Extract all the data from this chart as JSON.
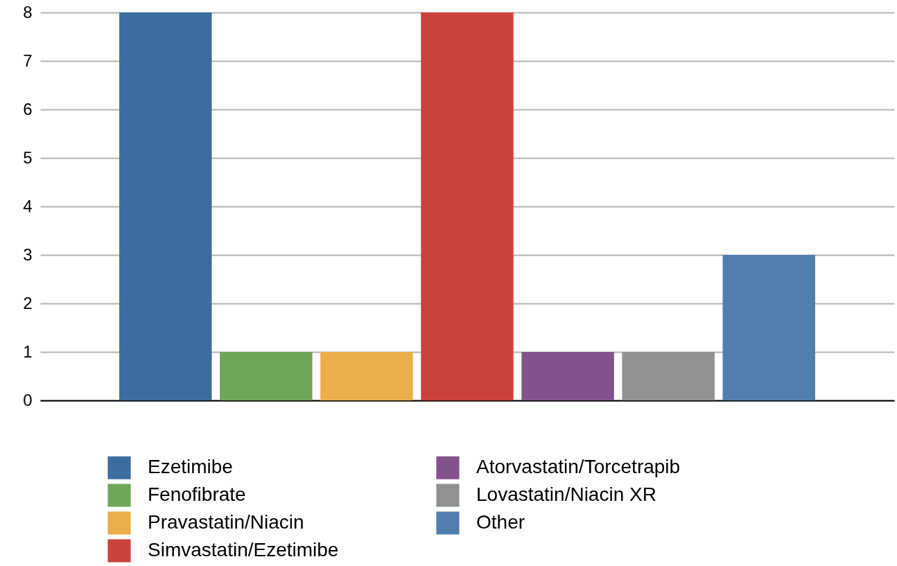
{
  "chart_data": {
    "type": "bar",
    "categories": [
      null
    ],
    "ylim": [
      0,
      8
    ],
    "yticks": [
      0,
      1,
      2,
      3,
      4,
      5,
      6,
      7,
      8
    ],
    "grid": "y",
    "legend": "bottom",
    "tick_labels": "y",
    "series": [
      {
        "name": "Ezetimibe",
        "color": "#3d6d9e",
        "values": [
          8
        ]
      },
      {
        "name": "Fenofibrate",
        "color": "#6ea65a",
        "values": [
          1
        ]
      },
      {
        "name": "Pravastatin/Niacin",
        "color": "#ecae4c",
        "values": [
          1
        ]
      },
      {
        "name": "Simvastatin/Ezetimibe",
        "color": "#cb413e",
        "values": [
          8
        ]
      },
      {
        "name": "Atorvastatin/Torcetrapib",
        "color": "#83528c",
        "values": [
          1
        ]
      },
      {
        "name": "Lovastatin/Niacin XR",
        "color": "#919191",
        "values": [
          1
        ]
      },
      {
        "name": "Other",
        "color": "#527eae",
        "values": [
          3
        ]
      }
    ]
  }
}
